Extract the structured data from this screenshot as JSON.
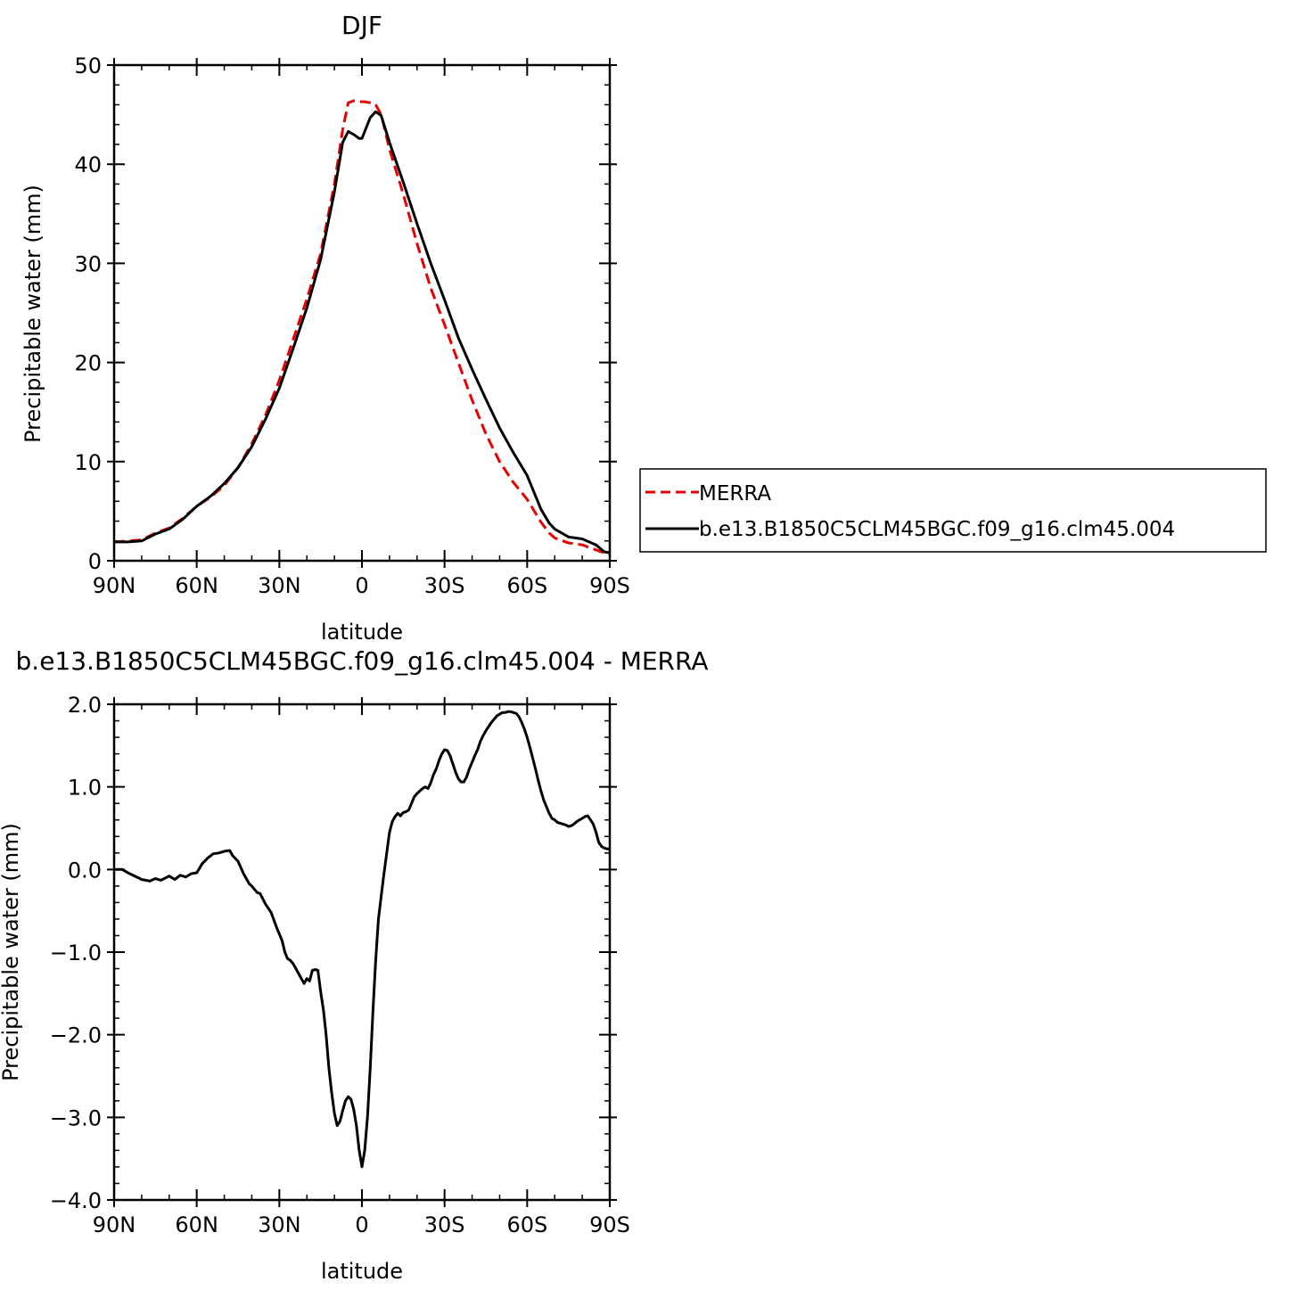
{
  "chart_data": [
    {
      "type": "line",
      "title": "DJF",
      "xlabel": "latitude",
      "ylabel": "Precipitable water (mm)",
      "xlim": [
        -90,
        90
      ],
      "ylim": [
        0,
        50
      ],
      "xticks": [
        {
          "value": -90,
          "label": "90N"
        },
        {
          "value": -60,
          "label": "60N"
        },
        {
          "value": -30,
          "label": "30N"
        },
        {
          "value": 0,
          "label": "0"
        },
        {
          "value": 30,
          "label": "30S"
        },
        {
          "value": 60,
          "label": "60S"
        },
        {
          "value": 90,
          "label": "90S"
        }
      ],
      "yticks": [
        {
          "value": 0,
          "label": "0"
        },
        {
          "value": 10,
          "label": "10"
        },
        {
          "value": 20,
          "label": "20"
        },
        {
          "value": 30,
          "label": "30"
        },
        {
          "value": 40,
          "label": "40"
        },
        {
          "value": 50,
          "label": "50"
        }
      ],
      "grid": false,
      "legend": "right",
      "x": [
        -90,
        -85,
        -80,
        -75,
        -70,
        -65,
        -60,
        -55,
        -50,
        -45,
        -40,
        -35,
        -30,
        -25,
        -20,
        -15,
        -10,
        -7,
        -5,
        -3,
        -1,
        0,
        1,
        3,
        5,
        7,
        10,
        15,
        20,
        25,
        30,
        35,
        40,
        45,
        50,
        55,
        60,
        65,
        68,
        70,
        75,
        80,
        85,
        88,
        90
      ],
      "series": [
        {
          "name": "MERRA",
          "color": "#e60000",
          "dash": "dashed",
          "values": [
            1.9,
            2.0,
            2.1,
            2.8,
            3.3,
            4.3,
            5.5,
            6.4,
            7.6,
            9.4,
            11.8,
            14.7,
            18.2,
            22.3,
            26.4,
            31.0,
            38.0,
            43.5,
            46.2,
            46.4,
            46.3,
            46.3,
            46.3,
            46.2,
            46.0,
            45.0,
            41.5,
            37.0,
            32.0,
            27.5,
            23.8,
            20.0,
            16.2,
            12.8,
            10.0,
            7.9,
            6.2,
            3.9,
            2.8,
            2.3,
            1.8,
            1.6,
            1.1,
            0.8,
            0.7
          ]
        },
        {
          "name": "b.e13.B1850C5CLM45BGC.f09_g16.clm45.004",
          "color": "#000000",
          "dash": "solid",
          "values": [
            1.9,
            1.9,
            2.0,
            2.7,
            3.2,
            4.2,
            5.5,
            6.5,
            7.8,
            9.4,
            11.5,
            14.3,
            17.4,
            21.4,
            25.5,
            30.4,
            37.2,
            42.2,
            43.3,
            43.0,
            42.6,
            42.6,
            43.3,
            44.7,
            45.3,
            44.9,
            42.2,
            38.2,
            34.0,
            30.0,
            26.3,
            22.5,
            19.3,
            16.3,
            13.4,
            10.9,
            8.6,
            5.2,
            3.8,
            3.2,
            2.4,
            2.2,
            1.6,
            0.9,
            0.8
          ]
        }
      ]
    },
    {
      "type": "line",
      "title": "b.e13.B1850C5CLM45BGC.f09_g16.clm45.004 - MERRA",
      "xlabel": "latitude",
      "ylabel": "Precipitable water (mm)",
      "xlim": [
        -90,
        90
      ],
      "ylim": [
        -4,
        2
      ],
      "xticks": [
        {
          "value": -90,
          "label": "90N"
        },
        {
          "value": -60,
          "label": "60N"
        },
        {
          "value": -30,
          "label": "30N"
        },
        {
          "value": 0,
          "label": "0"
        },
        {
          "value": 30,
          "label": "30S"
        },
        {
          "value": 60,
          "label": "60S"
        },
        {
          "value": 90,
          "label": "90S"
        }
      ],
      "yticks": [
        {
          "value": 2,
          "label": "2.0"
        },
        {
          "value": 1,
          "label": "1.0"
        },
        {
          "value": 0,
          "label": "0.0"
        },
        {
          "value": -1,
          "label": "−1.0"
        },
        {
          "value": -2,
          "label": "−2.0"
        },
        {
          "value": -3,
          "label": "−3.0"
        },
        {
          "value": -4,
          "label": "−4.0"
        }
      ],
      "grid": false,
      "x": [
        -90,
        -87,
        -85,
        -80,
        -77,
        -75,
        -73,
        -70,
        -68,
        -66,
        -64,
        -62,
        -60,
        -58,
        -56,
        -54,
        -52,
        -50,
        -48,
        -47,
        -45,
        -43,
        -41,
        -40,
        -38,
        -37,
        -35,
        -33,
        -31,
        -30,
        -29,
        -28,
        -27,
        -26,
        -25,
        -24,
        -23,
        -22,
        -21,
        -20,
        -19,
        -18,
        -17,
        -16,
        -15,
        -14,
        -13,
        -12,
        -11,
        -10,
        -9,
        -8,
        -7,
        -6,
        -5,
        -4,
        -3,
        -2,
        -1,
        0,
        1,
        2,
        3,
        4,
        5,
        6,
        7,
        8,
        9,
        10,
        11,
        12,
        13,
        14,
        15,
        16,
        17,
        18,
        19,
        20,
        21,
        22,
        23,
        24,
        25,
        26,
        27,
        28,
        29,
        30,
        31,
        32,
        33,
        34,
        35,
        36,
        37,
        38,
        39,
        40,
        41,
        42,
        43,
        44,
        45,
        46,
        47,
        48,
        49,
        50,
        51,
        52,
        53,
        54,
        55,
        56,
        57,
        58,
        59,
        60,
        61,
        62,
        63,
        64,
        65,
        66,
        67,
        68,
        69,
        70,
        71,
        72,
        73,
        74,
        75,
        76,
        77,
        78,
        79,
        80,
        81,
        82,
        83,
        84,
        85,
        86,
        87,
        88,
        89,
        90
      ],
      "series": [
        {
          "name": "",
          "color": "#000000",
          "dash": "solid",
          "values": [
            0.0,
            0.0,
            -0.04,
            -0.12,
            -0.14,
            -0.11,
            -0.13,
            -0.08,
            -0.12,
            -0.07,
            -0.09,
            -0.05,
            -0.04,
            0.07,
            0.14,
            0.19,
            0.2,
            0.22,
            0.23,
            0.17,
            0.1,
            -0.05,
            -0.17,
            -0.2,
            -0.28,
            -0.29,
            -0.42,
            -0.52,
            -0.7,
            -0.78,
            -0.86,
            -1.0,
            -1.08,
            -1.1,
            -1.14,
            -1.2,
            -1.26,
            -1.32,
            -1.38,
            -1.32,
            -1.35,
            -1.22,
            -1.21,
            -1.22,
            -1.48,
            -1.7,
            -2.0,
            -2.4,
            -2.7,
            -2.95,
            -3.1,
            -3.05,
            -2.92,
            -2.8,
            -2.75,
            -2.78,
            -2.9,
            -3.1,
            -3.4,
            -3.6,
            -3.4,
            -3.0,
            -2.4,
            -1.7,
            -1.1,
            -0.6,
            -0.32,
            -0.05,
            0.2,
            0.45,
            0.58,
            0.64,
            0.68,
            0.65,
            0.69,
            0.7,
            0.72,
            0.8,
            0.88,
            0.92,
            0.95,
            0.98,
            1.0,
            0.98,
            1.05,
            1.15,
            1.22,
            1.32,
            1.4,
            1.45,
            1.44,
            1.38,
            1.28,
            1.18,
            1.1,
            1.06,
            1.06,
            1.12,
            1.22,
            1.3,
            1.38,
            1.45,
            1.55,
            1.62,
            1.68,
            1.73,
            1.78,
            1.82,
            1.86,
            1.88,
            1.9,
            1.9,
            1.91,
            1.91,
            1.9,
            1.89,
            1.85,
            1.78,
            1.7,
            1.6,
            1.48,
            1.35,
            1.22,
            1.08,
            0.95,
            0.84,
            0.76,
            0.68,
            0.62,
            0.6,
            0.57,
            0.56,
            0.55,
            0.54,
            0.52,
            0.53,
            0.55,
            0.58,
            0.6,
            0.62,
            0.64,
            0.65,
            0.6,
            0.55,
            0.45,
            0.33,
            0.28,
            0.26,
            0.25,
            0.25
          ]
        }
      ]
    }
  ]
}
